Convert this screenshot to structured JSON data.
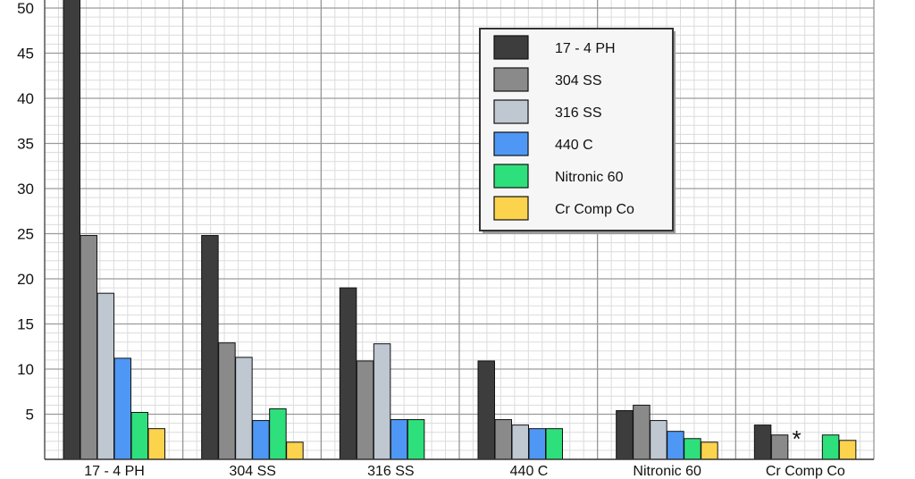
{
  "chart_data": {
    "type": "bar",
    "title": "",
    "xlabel": "",
    "ylabel": "",
    "ylim": [
      0,
      51
    ],
    "yticks": [
      5,
      10,
      15,
      20,
      25,
      30,
      35,
      40,
      45,
      50
    ],
    "grid": true,
    "legend_position": "top-right",
    "categories": [
      "17 - 4 PH",
      "304 SS",
      "316 SS",
      "440 C",
      "Nitronic 60",
      "Cr Comp Co"
    ],
    "series": [
      {
        "name": "17 - 4 PH",
        "color": "#3d3d3d",
        "values": [
          51,
          24.8,
          19,
          10.9,
          5.4,
          3.8
        ]
      },
      {
        "name": "304 SS",
        "color": "#8a8a8a",
        "values": [
          24.8,
          12.9,
          10.9,
          4.4,
          6,
          2.7
        ]
      },
      {
        "name": "316 SS",
        "color": "#bfc7d1",
        "values": [
          18.4,
          11.3,
          12.8,
          3.8,
          4.3,
          null
        ]
      },
      {
        "name": "440 C",
        "color": "#4f97f5",
        "values": [
          11.2,
          4.3,
          4.4,
          3.4,
          3.1,
          null
        ]
      },
      {
        "name": "Nitronic 60",
        "color": "#2ee07b",
        "values": [
          5.2,
          5.6,
          4.4,
          3.4,
          2.3,
          2.7
        ]
      },
      {
        "name": "Cr Comp Co",
        "color": "#fcd34d",
        "values": [
          3.4,
          1.9,
          null,
          null,
          1.9,
          2.1
        ]
      }
    ],
    "annotations": [
      {
        "category": "Cr Comp Co",
        "series": "316 SS",
        "text": "*"
      }
    ]
  }
}
